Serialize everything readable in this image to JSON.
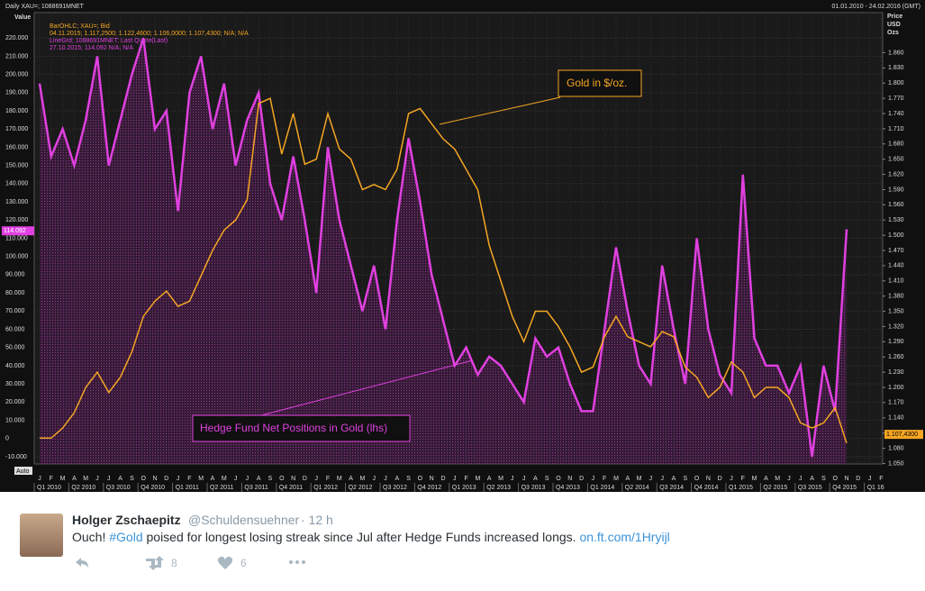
{
  "chart_data": {
    "type": "line",
    "title": "Daily XAU=; 1088691MNET",
    "date_range": "01.01.2010 - 24.02.2016 (GMT)",
    "y_label": "Value",
    "y2_label": [
      "Price",
      "USD",
      "Ozs"
    ],
    "scale_mode": "Auto",
    "legend_lines": [
      {
        "text": "BarOHLC; XAU=; Bid",
        "color": "#f5a623"
      },
      {
        "text": "04.11.2015; 1.117,2500; 1.122,4600; 1.106,0000; 1.107,4300; N/A; N/A",
        "color": "#f5a623"
      },
      {
        "text": "LineGrd; 1088691MNET; Last Quote(Last)",
        "color": "#e040e0"
      },
      {
        "text": "27.10.2015; 114.092 N/A; N/A",
        "color": "#e040e0"
      }
    ],
    "categories": [
      "J",
      "F",
      "M",
      "A",
      "M",
      "J",
      "J",
      "A",
      "S",
      "O",
      "N",
      "D",
      "J",
      "F",
      "M",
      "A",
      "M",
      "J",
      "J",
      "A",
      "S",
      "O",
      "N",
      "D",
      "J",
      "F",
      "M",
      "A",
      "M",
      "J",
      "J",
      "A",
      "S",
      "O",
      "N",
      "D",
      "J",
      "F",
      "M",
      "A",
      "M",
      "J",
      "J",
      "A",
      "S",
      "O",
      "N",
      "D",
      "J",
      "F",
      "M",
      "A",
      "M",
      "J",
      "J",
      "A",
      "S",
      "O",
      "N",
      "D",
      "J",
      "F",
      "M",
      "A",
      "M",
      "J",
      "J",
      "A",
      "S",
      "O",
      "N",
      "D",
      "J",
      "F"
    ],
    "quarters": [
      "Q1 2010",
      "Q2 2010",
      "Q3 2010",
      "Q4 2010",
      "Q1 2011",
      "Q2 2011",
      "Q3 2011",
      "Q4 2011",
      "Q1 2012",
      "Q2 2012",
      "Q3 2012",
      "Q4 2012",
      "Q1 2013",
      "Q2 2013",
      "Q3 2013",
      "Q4 2013",
      "Q1 2014",
      "Q2 2014",
      "Q3 2014",
      "Q4 2014",
      "Q1 2015",
      "Q2 2015",
      "Q3 2015",
      "Q4 2015",
      "Q1 16"
    ],
    "series": [
      {
        "name": "Gold in $/oz.",
        "color": "#f5a623",
        "axis": "y2",
        "values": [
          1.1,
          1.1,
          1.12,
          1.15,
          1.2,
          1.23,
          1.19,
          1.22,
          1.27,
          1.34,
          1.37,
          1.39,
          1.36,
          1.37,
          1.42,
          1.47,
          1.51,
          1.53,
          1.57,
          1.76,
          1.77,
          1.66,
          1.74,
          1.64,
          1.65,
          1.74,
          1.67,
          1.65,
          1.59,
          1.6,
          1.59,
          1.63,
          1.74,
          1.75,
          1.72,
          1.69,
          1.67,
          1.63,
          1.59,
          1.48,
          1.41,
          1.34,
          1.29,
          1.35,
          1.35,
          1.32,
          1.28,
          1.23,
          1.24,
          1.3,
          1.34,
          1.3,
          1.29,
          1.28,
          1.31,
          1.3,
          1.24,
          1.22,
          1.18,
          1.2,
          1.25,
          1.23,
          1.18,
          1.2,
          1.2,
          1.18,
          1.13,
          1.12,
          1.13,
          1.16,
          1.09,
          null,
          null,
          null
        ]
      },
      {
        "name": "Hedge Fund Net Positions in Gold (lhs)",
        "color": "#e040e0",
        "values": [
          195,
          155,
          170,
          150,
          175,
          210,
          150,
          175,
          200,
          220,
          170,
          180,
          125,
          190,
          210,
          170,
          195,
          150,
          175,
          190,
          140,
          120,
          155,
          120,
          80,
          160,
          120,
          95,
          70,
          95,
          60,
          120,
          165,
          130,
          90,
          65,
          40,
          50,
          35,
          45,
          40,
          30,
          20,
          55,
          45,
          50,
          30,
          15,
          15,
          60,
          105,
          70,
          40,
          30,
          95,
          60,
          30,
          110,
          60,
          35,
          25,
          145,
          55,
          40,
          40,
          25,
          40,
          -10,
          40,
          15,
          115,
          null,
          null,
          null
        ]
      }
    ],
    "ylim": [
      -14,
      234
    ],
    "yticks": [
      {
        "value": -10,
        "label": "-10.000"
      },
      0,
      {
        "value": 10,
        "label": "10.000"
      },
      {
        "value": 20,
        "label": "20.000"
      },
      {
        "value": 30,
        "label": "30.000"
      },
      {
        "value": 40,
        "label": "40.000"
      },
      {
        "value": 50,
        "label": "50.000"
      },
      {
        "value": 60,
        "label": "60.000"
      },
      {
        "value": 70,
        "label": "70.000"
      },
      {
        "value": 80,
        "label": "80.000"
      },
      {
        "value": 90,
        "label": "90.000"
      },
      {
        "value": 100,
        "label": "100.000"
      },
      {
        "value": 110,
        "label": "110.000"
      },
      {
        "value": 120,
        "label": "120.000"
      },
      {
        "value": 130,
        "label": "130.000"
      },
      {
        "value": 140,
        "label": "140.000"
      },
      {
        "value": 150,
        "label": "150.000"
      },
      {
        "value": 160,
        "label": "160.000"
      },
      {
        "value": 170,
        "label": "170.000"
      },
      {
        "value": 180,
        "label": "180.000"
      },
      {
        "value": 190,
        "label": "190.000"
      },
      {
        "value": 200,
        "label": "200.000"
      },
      {
        "value": 210,
        "label": "210.000"
      },
      {
        "value": 220,
        "label": "220.000"
      }
    ],
    "y2lim": [
      1.049,
      1.939
    ],
    "y2ticks": [
      {
        "value": 1.05,
        "label": "1.050"
      },
      {
        "value": 1.08,
        "label": "1.080"
      },
      {
        "value": 1.11,
        "label": "1.110"
      },
      {
        "value": 1.14,
        "label": "1.140"
      },
      {
        "value": 1.17,
        "label": "1.170"
      },
      {
        "value": 1.2,
        "label": "1.200"
      },
      {
        "value": 1.23,
        "label": "1.230"
      },
      {
        "value": 1.26,
        "label": "1.260"
      },
      {
        "value": 1.29,
        "label": "1.290"
      },
      {
        "value": 1.32,
        "label": "1.320"
      },
      {
        "value": 1.35,
        "label": "1.350"
      },
      {
        "value": 1.38,
        "label": "1.380"
      },
      {
        "value": 1.41,
        "label": "1.410"
      },
      {
        "value": 1.44,
        "label": "1.440"
      },
      {
        "value": 1.47,
        "label": "1.470"
      },
      {
        "value": 1.5,
        "label": "1.500"
      },
      {
        "value": 1.53,
        "label": "1.530"
      },
      {
        "value": 1.56,
        "label": "1.560"
      },
      {
        "value": 1.59,
        "label": "1.590"
      },
      {
        "value": 1.62,
        "label": "1.620"
      },
      {
        "value": 1.65,
        "label": "1.650"
      },
      {
        "value": 1.68,
        "label": "1.680"
      },
      {
        "value": 1.71,
        "label": "1.710"
      },
      {
        "value": 1.74,
        "label": "1.740"
      },
      {
        "value": 1.77,
        "label": "1.770"
      },
      {
        "value": 1.8,
        "label": "1.800"
      },
      {
        "value": 1.83,
        "label": "1.830"
      },
      {
        "value": 1.86,
        "label": "1.860"
      }
    ],
    "last_tags": {
      "y": {
        "value": 114.092,
        "label": "114.092"
      },
      "y2": {
        "value": 1.1074,
        "label": "1.107,4300"
      }
    },
    "grid": true
  },
  "tweet": {
    "name": "Holger Zschaepitz",
    "handle": "@Schuldensuehner",
    "time": "· 12 h",
    "text": [
      "Ouch! ",
      "#Gold",
      " poised for longest losing streak since Jul after Hedge Funds increased longs. ",
      "on.ft.com/1Hryijl"
    ],
    "retweets": 8,
    "likes": 6
  }
}
